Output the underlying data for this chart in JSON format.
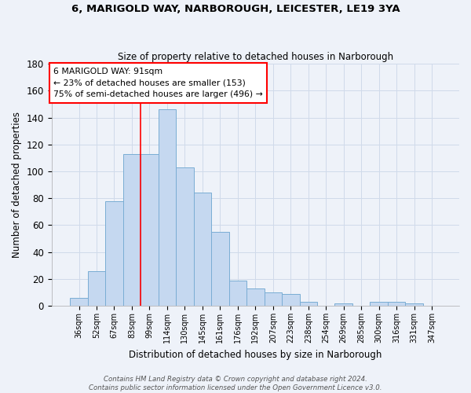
{
  "title1": "6, MARIGOLD WAY, NARBOROUGH, LEICESTER, LE19 3YA",
  "title2": "Size of property relative to detached houses in Narborough",
  "xlabel": "Distribution of detached houses by size in Narborough",
  "ylabel": "Number of detached properties",
  "categories": [
    "36sqm",
    "52sqm",
    "67sqm",
    "83sqm",
    "99sqm",
    "114sqm",
    "130sqm",
    "145sqm",
    "161sqm",
    "176sqm",
    "192sqm",
    "207sqm",
    "223sqm",
    "238sqm",
    "254sqm",
    "269sqm",
    "285sqm",
    "300sqm",
    "316sqm",
    "331sqm",
    "347sqm"
  ],
  "values": [
    6,
    26,
    78,
    113,
    113,
    146,
    103,
    84,
    55,
    19,
    13,
    10,
    9,
    3,
    0,
    2,
    0,
    3,
    3,
    2,
    0
  ],
  "bar_color": "#c5d8f0",
  "bar_edge_color": "#7aadd4",
  "bar_edge_width": 0.7,
  "grid_color": "#d0daea",
  "background_color": "#eef2f9",
  "red_line_index": 3.5,
  "annotation_text": "6 MARIGOLD WAY: 91sqm\n← 23% of detached houses are smaller (153)\n75% of semi-detached houses are larger (496) →",
  "annotation_box_color": "white",
  "annotation_border_color": "red",
  "ylim": [
    0,
    180
  ],
  "yticks": [
    0,
    20,
    40,
    60,
    80,
    100,
    120,
    140,
    160,
    180
  ],
  "footnote": "Contains HM Land Registry data © Crown copyright and database right 2024.\nContains public sector information licensed under the Open Government Licence v3.0."
}
